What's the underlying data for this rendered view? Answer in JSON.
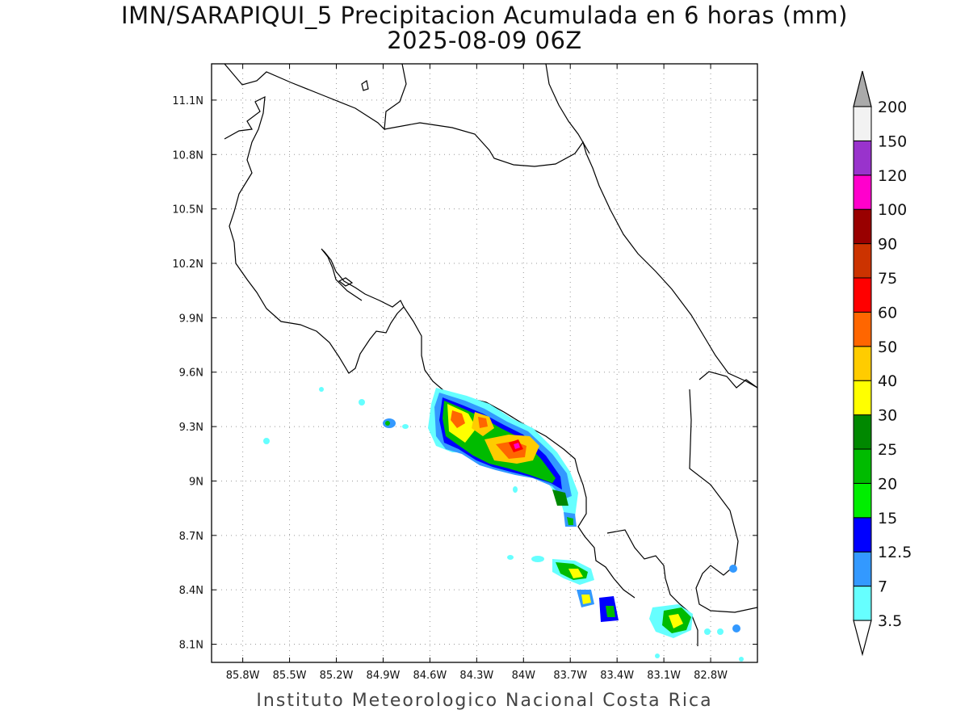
{
  "title": {
    "line1": "IMN/SARAPIQUI_5 Precipitacion Acumulada en 6 horas (mm)",
    "line2": "2025-08-09 06Z"
  },
  "footer": "Instituto Meteorologico Nacional Costa Rica",
  "map": {
    "lon_range": [
      -86.0,
      -82.5
    ],
    "lat_range": [
      8.0,
      11.3
    ],
    "x_ticks": [
      "85.8W",
      "85.5W",
      "85.2W",
      "84.9W",
      "84.6W",
      "84.3W",
      "84W",
      "83.7W",
      "83.4W",
      "83.1W",
      "82.8W"
    ],
    "y_ticks": [
      "11.1N",
      "10.8N",
      "10.5N",
      "10.2N",
      "9.9N",
      "9.6N",
      "9.3N",
      "9N",
      "8.7N",
      "8.4N",
      "8.1N"
    ],
    "grid": true
  },
  "colorbar": {
    "labels": [
      "3.5",
      "7",
      "12.5",
      "15",
      "20",
      "25",
      "30",
      "40",
      "50",
      "60",
      "75",
      "90",
      "100",
      "120",
      "150",
      "200"
    ],
    "colors": [
      "#66ffff",
      "#3399ff",
      "#0000ff",
      "#00ee00",
      "#00bb00",
      "#008800",
      "#ffff00",
      "#ffcc00",
      "#ff6600",
      "#ff0000",
      "#cc3300",
      "#990000",
      "#ff00cc",
      "#9933cc",
      "#f2f2f2"
    ],
    "over_color": "#aaaaaa",
    "under_color": "#ffffff"
  }
}
